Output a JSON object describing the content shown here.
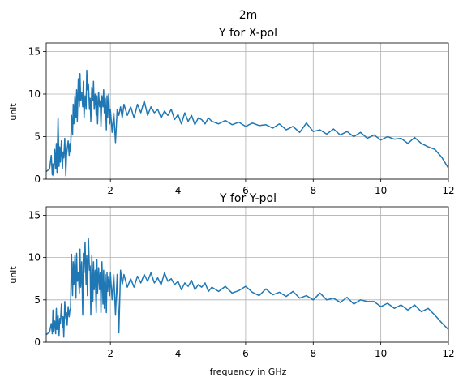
{
  "figure": {
    "suptitle": "2m"
  },
  "colors": {
    "series": "#1f77b4",
    "grid": "#b0b0b0"
  },
  "chart_data": [
    {
      "type": "line",
      "title": "Y for X-pol",
      "xlabel": "",
      "ylabel": "unit",
      "xlim": [
        0.1,
        12
      ],
      "ylim": [
        0,
        16
      ],
      "xticks": [
        2,
        4,
        6,
        8,
        10,
        12
      ],
      "yticks": [
        0,
        5,
        10,
        15
      ],
      "grid": true,
      "series": [
        {
          "x": [
            0.1,
            0.2,
            0.25,
            0.28,
            0.3,
            0.32,
            0.35,
            0.38,
            0.4,
            0.42,
            0.45,
            0.48,
            0.5,
            0.52,
            0.55,
            0.58,
            0.6,
            0.62,
            0.65,
            0.68,
            0.7,
            0.72,
            0.75,
            0.78,
            0.8,
            0.82,
            0.85,
            0.88,
            0.9,
            0.92,
            0.95,
            0.98,
            1.0,
            1.02,
            1.05,
            1.08,
            1.1,
            1.12,
            1.15,
            1.18,
            1.2,
            1.22,
            1.25,
            1.28,
            1.3,
            1.32,
            1.35,
            1.38,
            1.4,
            1.42,
            1.45,
            1.48,
            1.5,
            1.52,
            1.55,
            1.58,
            1.6,
            1.62,
            1.65,
            1.68,
            1.7,
            1.72,
            1.75,
            1.78,
            1.8,
            1.82,
            1.85,
            1.88,
            1.9,
            1.92,
            1.95,
            1.98,
            2.0,
            2.05,
            2.1,
            2.15,
            2.2,
            2.25,
            2.3,
            2.35,
            2.4,
            2.5,
            2.6,
            2.7,
            2.8,
            2.9,
            3.0,
            3.1,
            3.2,
            3.3,
            3.4,
            3.5,
            3.6,
            3.7,
            3.8,
            3.9,
            4.0,
            4.1,
            4.2,
            4.3,
            4.4,
            4.5,
            4.6,
            4.7,
            4.8,
            4.9,
            5.0,
            5.2,
            5.4,
            5.6,
            5.8,
            6.0,
            6.2,
            6.4,
            6.6,
            6.8,
            7.0,
            7.2,
            7.4,
            7.6,
            7.8,
            8.0,
            8.2,
            8.4,
            8.6,
            8.8,
            9.0,
            9.2,
            9.4,
            9.6,
            9.8,
            10.0,
            10.2,
            10.4,
            10.6,
            10.8,
            11.0,
            11.2,
            11.4,
            11.6,
            11.8,
            12.0
          ],
          "y": [
            0.9,
            1.2,
            2.8,
            0.5,
            1.8,
            0.4,
            3.5,
            1.2,
            4.2,
            0.8,
            7.2,
            1.5,
            3.8,
            2.0,
            4.5,
            1.2,
            3.2,
            2.5,
            4.8,
            0.4,
            2.8,
            3.5,
            4.5,
            2.8,
            4.2,
            3.2,
            7.5,
            5.2,
            8.8,
            6.5,
            9.8,
            7.2,
            10.5,
            6.8,
            11.8,
            8.5,
            12.4,
            9.2,
            10.2,
            8.5,
            11.5,
            7.2,
            9.8,
            8.2,
            12.8,
            10.5,
            11.2,
            8.2,
            9.5,
            6.8,
            10.8,
            9.2,
            11.5,
            8.2,
            10.0,
            7.5,
            9.8,
            6.5,
            10.2,
            8.5,
            9.2,
            6.2,
            9.8,
            8.5,
            10.5,
            7.8,
            9.5,
            5.8,
            9.8,
            7.2,
            10.0,
            6.5,
            8.2,
            5.5,
            7.8,
            4.3,
            8.2,
            7.5,
            8.5,
            7.2,
            8.8,
            7.5,
            8.5,
            7.2,
            8.8,
            7.8,
            9.2,
            7.5,
            8.5,
            7.8,
            8.2,
            7.2,
            8.0,
            7.5,
            8.2,
            7.0,
            7.6,
            6.5,
            7.8,
            6.8,
            7.5,
            6.4,
            7.2,
            7.0,
            6.5,
            7.2,
            6.8,
            6.5,
            6.9,
            6.4,
            6.7,
            6.2,
            6.6,
            6.3,
            6.4,
            6.0,
            6.5,
            5.8,
            6.2,
            5.5,
            6.6,
            5.6,
            5.8,
            5.3,
            5.9,
            5.2,
            5.6,
            5.0,
            5.5,
            4.8,
            5.2,
            4.6,
            5.0,
            4.7,
            4.8,
            4.2,
            4.9,
            4.2,
            3.8,
            3.5,
            2.6,
            1.3
          ]
        }
      ]
    },
    {
      "type": "line",
      "title": "Y for Y-pol",
      "xlabel": "frequency in GHz",
      "ylabel": "unit",
      "xlim": [
        0.1,
        12
      ],
      "ylim": [
        0,
        16
      ],
      "xticks": [
        2,
        4,
        6,
        8,
        10,
        12
      ],
      "yticks": [
        0,
        5,
        10,
        15
      ],
      "grid": true,
      "series": [
        {
          "x": [
            0.1,
            0.2,
            0.25,
            0.28,
            0.3,
            0.32,
            0.35,
            0.38,
            0.4,
            0.42,
            0.45,
            0.48,
            0.5,
            0.52,
            0.55,
            0.58,
            0.6,
            0.62,
            0.65,
            0.68,
            0.7,
            0.72,
            0.75,
            0.78,
            0.8,
            0.82,
            0.85,
            0.88,
            0.9,
            0.92,
            0.95,
            0.98,
            1.0,
            1.02,
            1.05,
            1.08,
            1.1,
            1.12,
            1.15,
            1.18,
            1.2,
            1.22,
            1.25,
            1.28,
            1.3,
            1.32,
            1.35,
            1.38,
            1.4,
            1.42,
            1.45,
            1.48,
            1.5,
            1.52,
            1.55,
            1.58,
            1.6,
            1.62,
            1.65,
            1.68,
            1.7,
            1.72,
            1.75,
            1.78,
            1.8,
            1.82,
            1.85,
            1.88,
            1.9,
            1.92,
            1.95,
            1.98,
            2.0,
            2.05,
            2.1,
            2.15,
            2.2,
            2.25,
            2.3,
            2.35,
            2.4,
            2.5,
            2.6,
            2.7,
            2.8,
            2.9,
            3.0,
            3.1,
            3.2,
            3.3,
            3.4,
            3.5,
            3.6,
            3.7,
            3.8,
            3.9,
            4.0,
            4.1,
            4.2,
            4.3,
            4.4,
            4.5,
            4.6,
            4.7,
            4.8,
            4.9,
            5.0,
            5.2,
            5.4,
            5.6,
            5.8,
            6.0,
            6.2,
            6.4,
            6.6,
            6.8,
            7.0,
            7.2,
            7.4,
            7.6,
            7.8,
            8.0,
            8.2,
            8.4,
            8.6,
            8.8,
            9.0,
            9.2,
            9.4,
            9.6,
            9.8,
            10.0,
            10.2,
            10.4,
            10.6,
            10.8,
            11.0,
            11.2,
            11.4,
            11.6,
            11.8,
            12.0
          ],
          "y": [
            0.9,
            1.2,
            2.2,
            1.0,
            3.8,
            1.2,
            2.5,
            1.0,
            4.0,
            1.5,
            3.2,
            0.8,
            2.8,
            2.2,
            4.5,
            1.8,
            3.0,
            0.6,
            4.8,
            2.8,
            3.5,
            2.0,
            4.2,
            3.0,
            3.8,
            4.0,
            10.4,
            5.5,
            9.5,
            6.8,
            10.2,
            5.2,
            10.5,
            7.2,
            8.2,
            5.8,
            11.0,
            6.5,
            9.5,
            3.2,
            10.5,
            8.2,
            11.8,
            6.8,
            10.2,
            5.5,
            12.2,
            8.5,
            9.0,
            3.2,
            10.2,
            4.8,
            9.5,
            6.2,
            8.5,
            3.5,
            9.8,
            5.8,
            8.8,
            6.2,
            8.2,
            3.5,
            9.5,
            4.5,
            8.5,
            4.0,
            8.0,
            3.5,
            8.2,
            6.0,
            7.8,
            5.5,
            8.2,
            5.0,
            8.0,
            3.2,
            8.0,
            1.1,
            8.5,
            6.8,
            8.0,
            6.5,
            7.5,
            6.5,
            7.8,
            7.0,
            8.0,
            7.2,
            8.2,
            7.0,
            7.6,
            6.8,
            8.2,
            7.2,
            7.5,
            6.8,
            7.2,
            6.2,
            7.0,
            6.6,
            7.3,
            6.2,
            6.8,
            6.5,
            7.0,
            6.0,
            6.5,
            6.0,
            6.6,
            5.8,
            6.1,
            6.6,
            5.9,
            5.5,
            6.3,
            5.6,
            5.9,
            5.4,
            6.0,
            5.2,
            5.5,
            5.0,
            5.8,
            5.0,
            5.2,
            4.7,
            5.3,
            4.5,
            5.0,
            4.8,
            4.8,
            4.2,
            4.6,
            4.0,
            4.4,
            3.8,
            4.4,
            3.6,
            4.0,
            3.2,
            2.3,
            1.5
          ]
        }
      ]
    }
  ]
}
